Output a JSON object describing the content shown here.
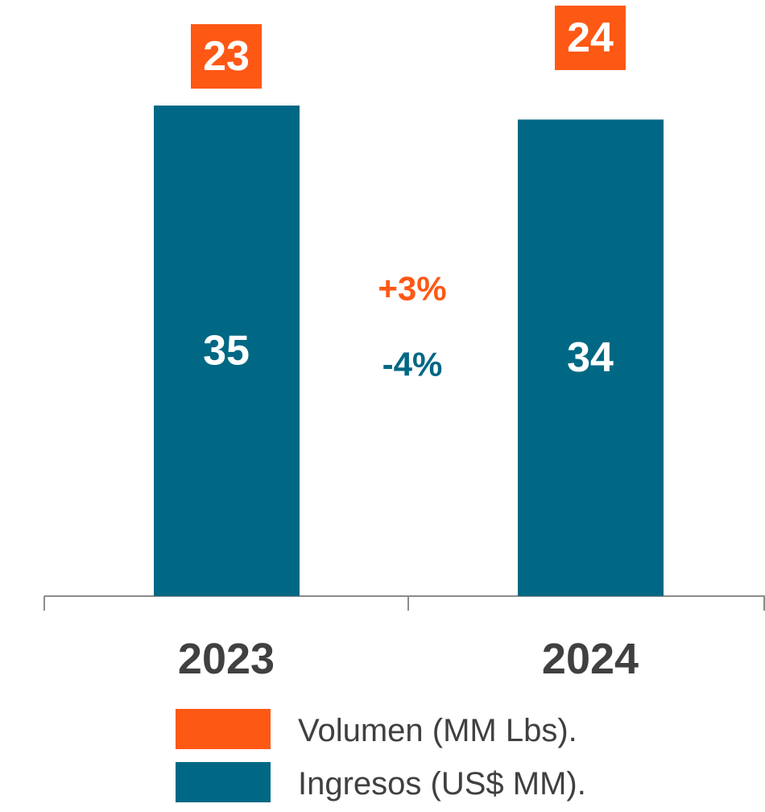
{
  "chart_data": {
    "type": "bar",
    "categories": [
      "2023",
      "2024"
    ],
    "series": [
      {
        "name": "Volumen (MM Lbs).",
        "color": "#fe5815",
        "values": [
          23,
          24
        ]
      },
      {
        "name": "Ingresos (US$ MM).",
        "color": "#006884",
        "values": [
          35,
          34
        ]
      }
    ],
    "annotations": [
      {
        "text": "+3%",
        "color": "#fe5815"
      },
      {
        "text": "-4%",
        "color": "#006884"
      }
    ]
  }
}
